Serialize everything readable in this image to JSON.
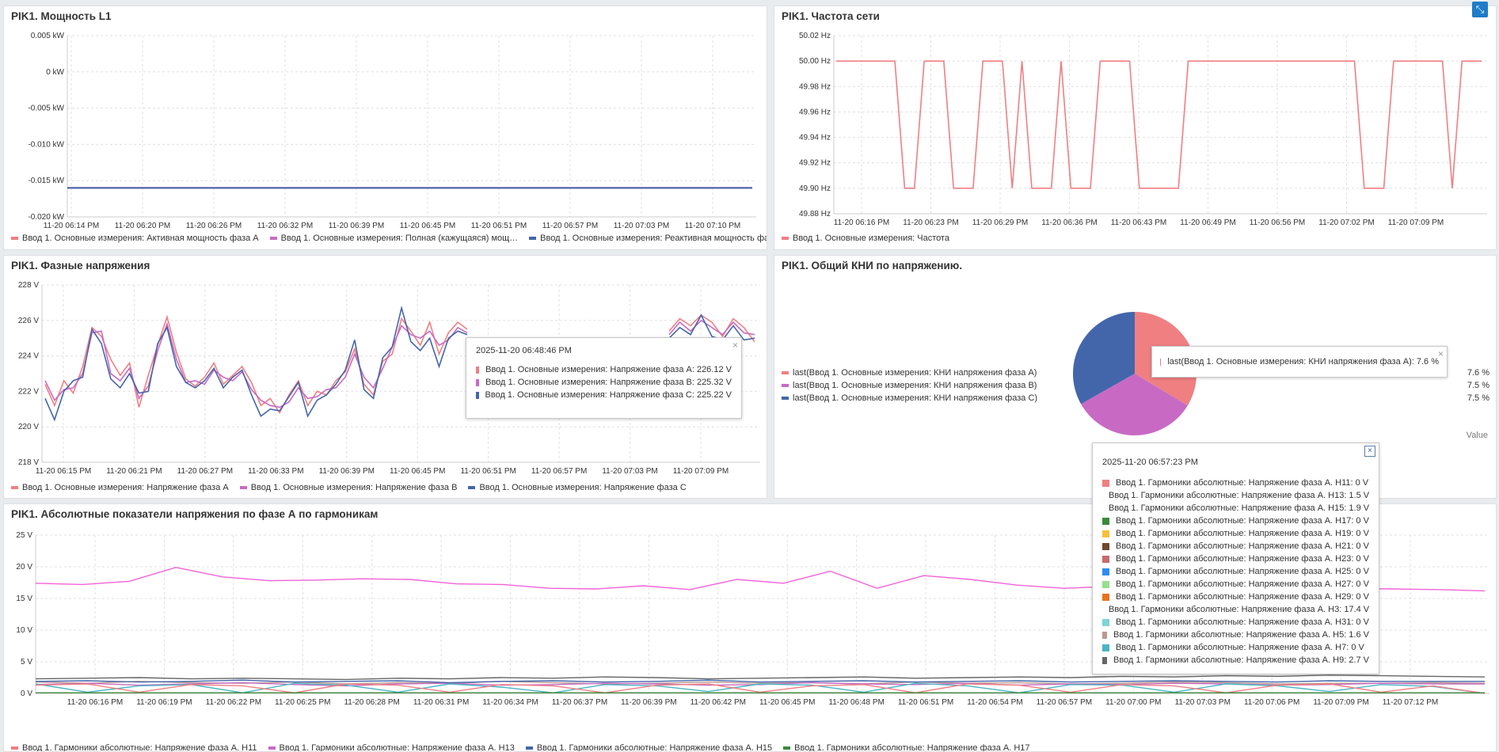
{
  "colors": {
    "red": "#f07f82",
    "purple": "#c86ac4",
    "blue": "#4366ab",
    "pink": "#f263d8",
    "gray": "#666666"
  },
  "panels": {
    "power": {
      "title": "PIK1. Мощность L1",
      "chart_data": {
        "type": "line",
        "ytick_labels": [
          "0.005 kW",
          "0 kW",
          "-0.005 kW",
          "-0.010 kW",
          "-0.015 kW",
          "-0.020 kW"
        ],
        "ylim": [
          -0.02,
          0.005
        ],
        "xtick_labels": [
          "11-20 06:14 PM",
          "11-20 06:20 PM",
          "11-20 06:26 PM",
          "11-20 06:32 PM",
          "11-20 06:39 PM",
          "11-20 06:45 PM",
          "11-20 06:51 PM",
          "11-20 06:57 PM",
          "11-20 07:03 PM",
          "11-20 07:10 PM"
        ],
        "series": [
          {
            "name": "Ввод 1. Основные измерения: Активная мощность фаза А",
            "color": "#f07f82",
            "values": [
              -0.016,
              -0.016
            ]
          },
          {
            "name": "Ввод 1. Основные измерения: Полная (кажущаяся) мощ…",
            "color": "#c86ac4",
            "values": [
              -0.016,
              -0.016
            ]
          },
          {
            "name": "Ввод 1. Основные измерения: Реактивная мощность фа…",
            "color": "#4366ab",
            "values": [
              -0.016,
              -0.016
            ]
          }
        ]
      }
    },
    "freq": {
      "title": "PIK1. Частота сети",
      "chart_data": {
        "type": "line",
        "ytick_labels": [
          "50.02 Hz",
          "50.00 Hz",
          "49.98 Hz",
          "49.96 Hz",
          "49.94 Hz",
          "49.92 Hz",
          "49.90 Hz",
          "49.88 Hz"
        ],
        "ylim": [
          49.88,
          50.02
        ],
        "xtick_labels": [
          "11-20 06:16 PM",
          "11-20 06:23 PM",
          "11-20 06:29 PM",
          "11-20 06:36 PM",
          "11-20 06:43 PM",
          "11-20 06:49 PM",
          "11-20 06:56 PM",
          "11-20 07:02 PM",
          "11-20 07:09 PM"
        ],
        "series": [
          {
            "name": "Ввод 1. Основные измерения: Частота",
            "color": "#f07f82",
            "values": [
              50.0,
              50.0,
              50.0,
              50.0,
              50.0,
              50.0,
              50.0,
              49.9,
              49.9,
              50.0,
              50.0,
              50.0,
              49.9,
              49.9,
              49.9,
              50.0,
              50.0,
              50.0,
              49.9,
              50.0,
              49.9,
              49.9,
              49.9,
              50.0,
              49.9,
              49.9,
              49.9,
              50.0,
              50.0,
              50.0,
              50.0,
              49.9,
              49.9,
              49.9,
              49.9,
              49.9,
              50.0,
              50.0,
              50.0,
              50.0,
              50.0,
              50.0,
              50.0,
              50.0,
              50.0,
              50.0,
              50.0,
              50.0,
              50.0,
              50.0,
              50.0,
              50.0,
              50.0,
              50.0,
              49.9,
              49.9,
              49.9,
              50.0,
              50.0,
              50.0,
              50.0,
              50.0,
              50.0,
              49.9,
              50.0,
              50.0,
              50.0
            ]
          }
        ]
      }
    },
    "voltage": {
      "title": "PIK1. Фазные напряжения",
      "chart_data": {
        "type": "line",
        "ytick_labels": [
          "228 V",
          "226 V",
          "224 V",
          "222 V",
          "220 V",
          "218 V"
        ],
        "ylim": [
          218,
          228
        ],
        "xtick_labels": [
          "11-20 06:15 PM",
          "11-20 06:21 PM",
          "11-20 06:27 PM",
          "11-20 06:33 PM",
          "11-20 06:39 PM",
          "11-20 06:45 PM",
          "11-20 06:51 PM",
          "11-20 06:57 PM",
          "11-20 07:03 PM",
          "11-20 07:09 PM"
        ],
        "series": [
          {
            "name": "Ввод 1. Основные измерения: Напряжение фаза A",
            "color": "#f07f82",
            "values": [
              222.4,
              221.2,
              222.6,
              221.9,
              223.4,
              225.6,
              225.1,
              223.8,
              222.9,
              223.6,
              221.1,
              222.9,
              224.6,
              226.2,
              224.2,
              222.7,
              222.3,
              222.8,
              223.6,
              222.4,
              222.9,
              223.4,
              222.5,
              221.2,
              221.6,
              220.8,
              221.8,
              222.6,
              221.2,
              222.0,
              221.8,
              222.6,
              223.1,
              224.4,
              222.4,
              221.8,
              223.7,
              224.1,
              226.1,
              225.4,
              224.6,
              225.9,
              224.1,
              225.3,
              225.9,
              225.5
            ]
          },
          {
            "name": "Ввод 1. Основные измерения: Напряжение фаза B",
            "color": "#c86ac4",
            "values": [
              222.6,
              221.5,
              222.1,
              222.2,
              223.0,
              225.3,
              225.4,
              223.0,
              222.6,
              223.3,
              221.6,
              222.3,
              224.3,
              225.8,
              223.8,
              222.5,
              222.6,
              222.4,
              223.2,
              222.8,
              222.6,
              223.1,
              222.1,
              221.5,
              221.2,
              221.1,
              221.4,
              222.2,
              221.6,
              221.7,
              222.1,
              222.2,
              222.8,
              224.1,
              222.8,
              222.2,
              223.3,
              224.5,
              225.7,
              225.2,
              225.0,
              225.4,
              224.6,
              224.9,
              225.6,
              225.3
            ]
          },
          {
            "name": "Ввод 1. Основные измерения: Напряжение фаза C",
            "color": "#4366ab",
            "values": [
              221.6,
              220.4,
              222.0,
              222.6,
              222.8,
              225.5,
              224.7,
              222.7,
              222.2,
              223.0,
              221.9,
              222.0,
              224.7,
              225.6,
              223.4,
              222.5,
              222.2,
              222.6,
              223.3,
              222.2,
              222.8,
              223.2,
              221.8,
              220.6,
              221.0,
              220.9,
              221.7,
              222.5,
              220.6,
              221.5,
              221.8,
              222.4,
              223.2,
              224.9,
              222.1,
              221.6,
              223.9,
              224.5,
              226.7,
              224.8,
              224.3,
              225.0,
              223.4,
              225.0,
              225.4,
              225.2
            ]
          }
        ],
        "tail_values": [
          [
            225.4,
            226.1,
            225.7,
            226.3,
            225.9,
            225.1,
            226.1,
            225.6,
            224.8
          ],
          [
            225.2,
            225.9,
            225.4,
            226.0,
            225.6,
            225.2,
            225.9,
            225.3,
            225.2
          ],
          [
            225.0,
            225.6,
            225.2,
            226.3,
            225.1,
            224.9,
            225.7,
            224.9,
            225.0
          ]
        ]
      },
      "tooltip": {
        "time": "2025-11-20 06:48:46 PM",
        "close": "×",
        "rows": [
          {
            "label": "Ввод 1. Основные измерения: Напряжение фаза A: 226.12 V",
            "color": "#f07f82"
          },
          {
            "label": "Ввод 1. Основные измерения: Напряжение фаза B: 225.32 V",
            "color": "#c86ac4"
          },
          {
            "label": "Ввод 1. Основные измерения: Напряжение фаза C: 225.22 V",
            "color": "#4366ab"
          }
        ]
      }
    },
    "thd": {
      "title": "PIK1. Общий КНИ по напряжению.",
      "chart_data": {
        "type": "pie",
        "value_header": "Value",
        "slices": [
          {
            "name": "last(Ввод 1. Основные измерения: КНИ напряжения фаза A)",
            "value": 7.6,
            "display": "7.6 %",
            "color": "#f07f82"
          },
          {
            "name": "last(Ввод 1. Основные измерения: КНИ напряжения фаза B)",
            "value": 7.5,
            "display": "7.5 %",
            "color": "#c86ac4"
          },
          {
            "name": "last(Ввод 1. Основные измерения: КНИ напряжения фаза C)",
            "value": 7.5,
            "display": "7.5 %",
            "color": "#4366ab"
          }
        ]
      },
      "tooltip": {
        "label": "last(Ввод 1. Основные измерения: КНИ напряжения фаза A): 7.6 %",
        "color": "#f07f82",
        "close": "×"
      }
    },
    "harm": {
      "title": "PIK1. Абсолютные показатели напряжения по фазе А по гармоникам",
      "chart_data": {
        "type": "line",
        "ytick_labels": [
          "25 V",
          "20 V",
          "15 V",
          "10 V",
          "5 V",
          "0 V"
        ],
        "ylim": [
          0,
          25
        ],
        "xtick_labels": [
          "11-20 06:16 PM",
          "11-20 06:19 PM",
          "11-20 06:22 PM",
          "11-20 06:25 PM",
          "11-20 06:28 PM",
          "11-20 06:31 PM",
          "11-20 06:34 PM",
          "11-20 06:37 PM",
          "11-20 06:39 PM",
          "11-20 06:42 PM",
          "11-20 06:45 PM",
          "11-20 06:48 PM",
          "11-20 06:51 PM",
          "11-20 06:54 PM",
          "11-20 06:57 PM",
          "11-20 07:00 PM",
          "11-20 07:03 PM",
          "11-20 07:06 PM",
          "11-20 07:09 PM",
          "11-20 07:12 PM"
        ],
        "series": [
          {
            "name": "Ввод 1. Гармоники абсолютные: Напряжение фаза А. H3",
            "color": "#f263d8",
            "values": [
              17.4,
              17.2,
              17.7,
              19.9,
              18.4,
              17.8,
              17.9,
              18.1,
              18.0,
              17.3,
              17.2,
              16.6,
              16.5,
              17.0,
              16.4,
              18.0,
              17.4,
              19.3,
              16.6,
              18.6,
              18.0,
              17.1,
              16.6,
              16.9,
              16.8,
              16.7,
              16.4,
              16.5,
              16.6,
              16.5,
              16.4,
              16.2
            ]
          },
          {
            "name": "Ввод 1. Гармоники абсолютные: Напряжение фаза А. H9",
            "color": "#666666",
            "values": [
              2.3,
              2.4,
              2.5,
              2.3,
              2.4,
              2.3,
              2.2,
              2.4,
              2.3,
              2.5,
              2.4,
              2.6,
              2.5,
              2.3,
              2.4,
              2.5,
              2.6,
              2.4,
              2.5,
              2.6,
              2.5,
              2.7,
              2.6,
              2.8,
              2.7,
              2.9,
              2.8,
              2.7,
              2.6
            ]
          },
          {
            "name": "Ввод 1. Гармоники абсолютные: Напряжение фаза А. H5",
            "color": "#b99b8e",
            "values": [
              1.8,
              1.6,
              1.9,
              1.7,
              1.6,
              1.8,
              1.5,
              1.7,
              1.6,
              1.9,
              1.7,
              1.5,
              1.6,
              1.8,
              1.6,
              1.7,
              1.5,
              1.8,
              1.6,
              1.7,
              1.5,
              1.6,
              1.8,
              1.7,
              1.5,
              1.6,
              1.6,
              1.7,
              1.6
            ]
          },
          {
            "name": "Ввод 1. Гармоники абсолютные: Напряжение фаза А. H13",
            "color": "#c86ac4",
            "values": [
              1.4,
              1.6,
              1.3,
              1.5,
              1.7,
              1.4,
              1.2,
              1.5,
              1.6,
              1.3,
              1.4,
              1.6,
              1.5,
              1.3,
              1.4,
              1.7,
              1.5,
              1.4,
              1.6,
              1.3,
              1.5,
              1.4,
              1.6,
              1.5,
              1.3,
              1.4,
              1.6,
              1.5,
              1.5
            ]
          },
          {
            "name": "Ввод 1. Гармоники абсолютные: Напряжение фаза А. H15",
            "color": "#4366ab",
            "values": [
              1.9,
              2.0,
              1.8,
              1.9,
              2.1,
              1.8,
              1.9,
              2.0,
              1.7,
              1.9,
              2.0,
              1.8,
              1.9,
              2.1,
              1.8,
              1.9,
              2.0,
              1.8,
              1.9,
              2.0,
              1.8,
              1.9,
              2.0,
              1.9,
              1.8,
              2.0,
              1.9,
              1.9,
              1.9
            ]
          },
          {
            "name": "Ввод 1. Гармоники абсолютные: Напряжение фаза А. H7",
            "color": "#4ab5c4",
            "values": [
              1.5,
              0.2,
              1.2,
              1.4,
              0.1,
              1.6,
              1.3,
              0.2,
              1.5,
              1.0,
              0.1,
              1.4,
              1.2,
              0.3,
              1.5,
              1.3,
              0.2,
              1.6,
              1.2,
              0.1,
              1.4,
              1.3,
              0.2,
              1.5,
              1.2,
              0.3,
              1.4,
              1.1,
              0.0
            ]
          },
          {
            "name": "Ввод 1. Гармоники абсолютные: Напряжение фаза А. H11",
            "color": "#f07f82",
            "values": [
              1.3,
              1.5,
              0.2,
              1.4,
              1.2,
              0.1,
              1.5,
              1.3,
              0.2,
              1.4,
              1.2,
              0.1,
              1.3,
              1.5,
              0.2,
              1.2,
              1.4,
              0.1,
              1.5,
              1.3,
              0.2,
              1.4,
              1.2,
              0.1,
              1.3,
              1.5,
              0.2,
              1.2,
              0.0
            ]
          },
          {
            "name": "Ввод 1. Гармоники абсолютные: Напряжение фаза А. H17",
            "color": "#3b8a3b",
            "values": [
              0.1,
              0.1,
              0.1,
              0.1,
              0.1,
              0.1,
              0.1,
              0.1,
              0.1,
              0.1,
              0.1,
              0.1,
              0.1,
              0.1,
              0.1,
              0.1,
              0.1,
              0.1,
              0.1,
              0.1,
              0.1,
              0.1,
              0.1,
              0.1,
              0.1,
              0.1,
              0.1,
              0.1,
              0.1
            ]
          }
        ]
      },
      "legend": [
        {
          "name": "Ввод 1. Гармоники абсолютные: Напряжение фаза А. H11",
          "color": "#f07f82"
        },
        {
          "name": "Ввод 1. Гармоники абсолютные: Напряжение фаза А. H13",
          "color": "#c86ac4"
        },
        {
          "name": "Ввод 1. Гармоники абсолютные: Напряжение фаза А. H15",
          "color": "#4366ab"
        },
        {
          "name": "Ввод 1. Гармоники абсолютные: Напряжение фаза А. H17",
          "color": "#3b8a3b"
        }
      ],
      "tooltip": {
        "time": "2025-11-20 06:57:23 PM",
        "close": "×",
        "rows": [
          {
            "label": "Ввод 1. Гармоники абсолютные: Напряжение фаза А. H11: 0 V",
            "color": "#f07f82"
          },
          {
            "label": "Ввод 1. Гармоники абсолютные: Напряжение фаза А. H13: 1.5 V",
            "color": "#c86ac4"
          },
          {
            "label": "Ввод 1. Гармоники абсолютные: Напряжение фаза А. H15: 1.9 V",
            "color": "#4366ab"
          },
          {
            "label": "Ввод 1. Гармоники абсолютные: Напряжение фаза А. H17: 0 V",
            "color": "#3b8a3b"
          },
          {
            "label": "Ввод 1. Гармоники абсолютные: Напряжение фаза А. H19: 0 V",
            "color": "#f5c03b"
          },
          {
            "label": "Ввод 1. Гармоники абсолютные: Напряжение фаза А. H21: 0 V",
            "color": "#6e4a2e"
          },
          {
            "label": "Ввод 1. Гармоники абсолютные: Напряжение фаза А. H23: 0 V",
            "color": "#c86a6e"
          },
          {
            "label": "Ввод 1. Гармоники абсолютные: Напряжение фаза А. H25: 0 V",
            "color": "#2f8cf0"
          },
          {
            "label": "Ввод 1. Гармоники абсолютные: Напряжение фаза А. H27: 0 V",
            "color": "#94e08c"
          },
          {
            "label": "Ввод 1. Гармоники абсолютные: Напряжение фаза А. H29: 0 V",
            "color": "#e8731c"
          },
          {
            "label": "Ввод 1. Гармоники абсолютные: Напряжение фаза А. H3: 17.4 V",
            "color": "#f263d8"
          },
          {
            "label": "Ввод 1. Гармоники абсолютные: Напряжение фаза А. H31: 0 V",
            "color": "#7fd4d4"
          },
          {
            "label": "Ввод 1. Гармоники абсолютные: Напряжение фаза А. H5: 1.6 V",
            "color": "#b99b8e"
          },
          {
            "label": "Ввод 1. Гармоники абсолютные: Напряжение фаза А. H7: 0 V",
            "color": "#4ab5c4"
          },
          {
            "label": "Ввод 1. Гармоники абсолютные: Напряжение фаза А. H9: 2.7 V",
            "color": "#666666"
          }
        ]
      }
    }
  },
  "expand_icon": "expand-icon"
}
